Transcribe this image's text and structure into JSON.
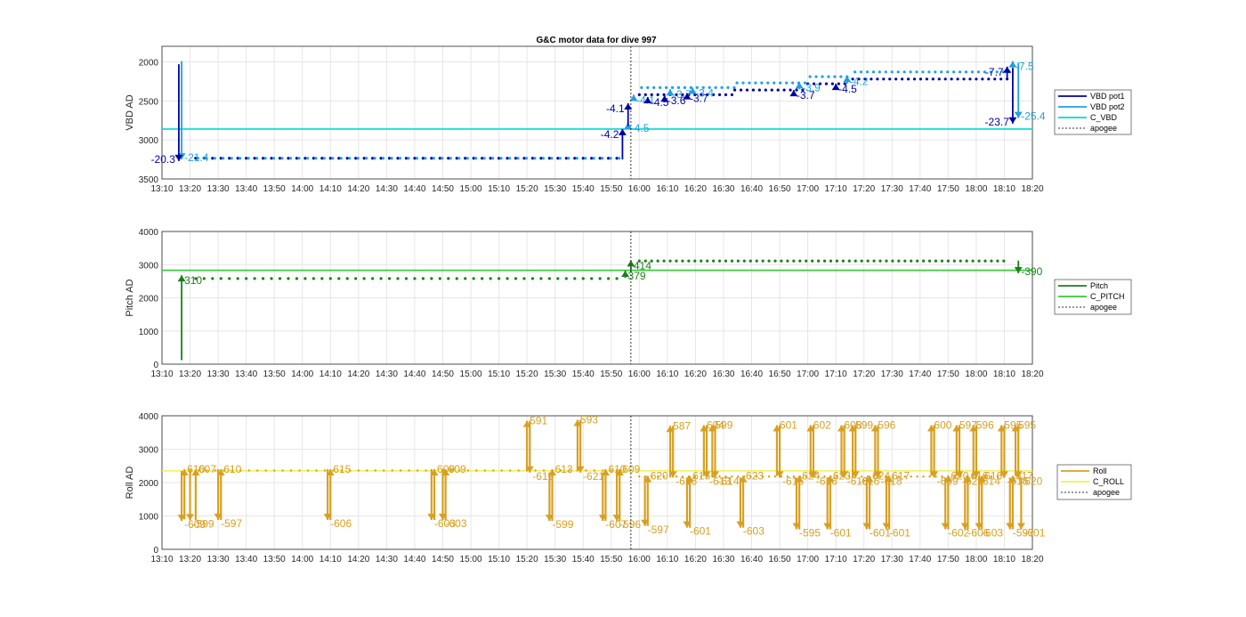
{
  "figure_title": "G&C motor data for dive 997",
  "time_ticks": [
    "13:10",
    "13:20",
    "13:30",
    "13:40",
    "13:50",
    "14:00",
    "14:10",
    "14:20",
    "14:30",
    "14:40",
    "14:50",
    "15:00",
    "15:10",
    "15:20",
    "15:30",
    "15:40",
    "15:50",
    "16:00",
    "16:10",
    "16:20",
    "16:30",
    "16:40",
    "16:50",
    "17:00",
    "17:10",
    "17:20",
    "17:30",
    "17:40",
    "17:50",
    "18:00",
    "18:10",
    "18:20"
  ],
  "colors": {
    "vbd_pot1": "#0000a8",
    "vbd_pot2": "#1ea0e6",
    "c_vbd": "#00d8d8",
    "pitch": "#1b7f1b",
    "c_pitch": "#33cc33",
    "roll": "#d8a020",
    "c_roll": "#f0f050",
    "apogee": "#333333",
    "grid": "#e6e6e6"
  },
  "chart_data": [
    {
      "type": "scatter",
      "title": "G&C motor data for dive 997",
      "xlabel": "",
      "ylabel": "VBD AD",
      "xlim": [
        "13:10",
        "18:20"
      ],
      "ylim": [
        3500,
        1800
      ],
      "y_reversed": true,
      "yticks": [
        2000,
        2500,
        3000,
        3500
      ],
      "grid": true,
      "legend_position": "right",
      "legend": [
        "VBD pot1",
        "VBD pot2",
        "C_VBD",
        "apogee"
      ],
      "reference_lines": [
        {
          "name": "C_VBD",
          "value": 2860
        }
      ],
      "apogee_time": "15:57",
      "segments": [
        {
          "period": "dive",
          "start": "13:22",
          "end": "15:54",
          "value": 3235
        },
        {
          "period": "climb",
          "start": "16:00",
          "end": "16:34",
          "value": 2420
        },
        {
          "period": "climb",
          "start": "16:34",
          "end": "17:00",
          "value": 2360
        },
        {
          "period": "climb",
          "start": "17:00",
          "end": "17:14",
          "value": 2280
        },
        {
          "period": "climb",
          "start": "17:16",
          "end": "18:12",
          "value": 2220
        }
      ],
      "moves": [
        {
          "series": "VBD pot2",
          "t": "13:17",
          "from": 1990,
          "to": 3250,
          "label": "-21.4"
        },
        {
          "series": "VBD pot1",
          "t": "13:16",
          "from": 2030,
          "to": 3270,
          "label": "-20.3"
        },
        {
          "series": "VBD pot1",
          "t": "15:54",
          "from": 3250,
          "to": 2860,
          "label": "-4.2"
        },
        {
          "series": "VBD pot2",
          "t": "15:56",
          "from": 2850,
          "to": 2780,
          "label": "-4.5"
        },
        {
          "series": "VBD pot1",
          "t": "15:56",
          "from": 2820,
          "to": 2530,
          "label": "-4.1"
        },
        {
          "series": "VBD pot2",
          "t": "15:58",
          "from": 2500,
          "to": 2420,
          "label": "-4.1"
        },
        {
          "series": "VBD pot1",
          "t": "16:03",
          "from": 2510,
          "to": 2450,
          "label": "-4.5"
        },
        {
          "series": "VBD pot1",
          "t": "16:09",
          "from": 2470,
          "to": 2430,
          "label": "-3.6"
        },
        {
          "series": "VBD pot2",
          "t": "16:11",
          "from": 2420,
          "to": 2350,
          "label": "-3.7"
        },
        {
          "series": "VBD pot1",
          "t": "16:17",
          "from": 2440,
          "to": 2400,
          "label": "-3.7"
        },
        {
          "series": "VBD pot2",
          "t": "16:19",
          "from": 2410,
          "to": 2330,
          "label": "-3.4"
        },
        {
          "series": "VBD pot1",
          "t": "16:55",
          "from": 2390,
          "to": 2360,
          "label": "-3.7"
        },
        {
          "series": "VBD pot2",
          "t": "16:57",
          "from": 2350,
          "to": 2260,
          "label": "-3.9"
        },
        {
          "series": "VBD pot1",
          "t": "17:10",
          "from": 2320,
          "to": 2280,
          "label": "-4.5"
        },
        {
          "series": "VBD pot2",
          "t": "17:14",
          "from": 2280,
          "to": 2180,
          "label": "-4.2"
        },
        {
          "series": "VBD pot1",
          "t": "18:11",
          "from": 2230,
          "to": 2060,
          "label": "-7.7"
        },
        {
          "series": "VBD pot2",
          "t": "18:13",
          "from": 2220,
          "to": 1990,
          "label": "-7.5"
        },
        {
          "series": "VBD pot1",
          "t": "18:13",
          "from": 2080,
          "to": 2790,
          "label": "-23.7"
        },
        {
          "series": "VBD pot2",
          "t": "18:15",
          "from": 2010,
          "to": 2720,
          "label": "-25.4"
        }
      ]
    },
    {
      "type": "scatter",
      "xlabel": "",
      "ylabel": "Pitch AD",
      "xlim": [
        "13:10",
        "18:20"
      ],
      "ylim": [
        0,
        4000
      ],
      "yticks": [
        0,
        1000,
        2000,
        3000,
        4000
      ],
      "grid": true,
      "legend_position": "right",
      "legend": [
        "Pitch",
        "C_PITCH",
        "apogee"
      ],
      "reference_lines": [
        {
          "name": "C_PITCH",
          "value": 2830
        }
      ],
      "apogee_time": "15:57",
      "segments": [
        {
          "period": "dive",
          "start": "13:22",
          "end": "15:54",
          "value": 2580
        },
        {
          "period": "climb",
          "start": "16:00",
          "end": "18:12",
          "value": 3110
        }
      ],
      "moves": [
        {
          "series": "Pitch",
          "t": "13:17",
          "from": 120,
          "to": 2680,
          "label": "310"
        },
        {
          "series": "Pitch",
          "t": "15:55",
          "from": 2600,
          "to": 2820,
          "label": "379"
        },
        {
          "series": "Pitch",
          "t": "15:57",
          "from": 2780,
          "to": 3130,
          "label": "414"
        },
        {
          "series": "Pitch",
          "t": "18:15",
          "from": 3120,
          "to": 2740,
          "label": "-390"
        }
      ]
    },
    {
      "type": "scatter",
      "xlabel": "",
      "ylabel": "Roll AD",
      "xlim": [
        "13:10",
        "18:20"
      ],
      "ylim": [
        0,
        4000
      ],
      "yticks": [
        0,
        1000,
        2000,
        3000,
        4000
      ],
      "grid": true,
      "legend_position": "right",
      "legend": [
        "Roll",
        "C_ROLL",
        "apogee"
      ],
      "reference_lines": [
        {
          "name": "C_ROLL",
          "value": 2350
        }
      ],
      "apogee_time": "15:57",
      "segments": [
        {
          "period": "dive",
          "start": "13:20",
          "end": "15:54",
          "value": 2360
        },
        {
          "period": "climb",
          "start": "16:00",
          "end": "18:12",
          "value": 2180
        }
      ],
      "moves": [
        {
          "t": "13:17",
          "from": 2350,
          "to": 850,
          "label": "-609"
        },
        {
          "t": "13:18",
          "from": 900,
          "to": 2400,
          "label": "610"
        },
        {
          "t": "13:20",
          "from": 2400,
          "to": 870,
          "label": "-599"
        },
        {
          "t": "13:22",
          "from": 870,
          "to": 2400,
          "label": "607"
        },
        {
          "t": "13:30",
          "from": 2400,
          "to": 880,
          "label": "-597"
        },
        {
          "t": "13:31",
          "from": 880,
          "to": 2400,
          "label": "610"
        },
        {
          "t": "14:09",
          "from": 2400,
          "to": 880,
          "label": "-606"
        },
        {
          "t": "14:10",
          "from": 880,
          "to": 2400,
          "label": "615"
        },
        {
          "t": "14:46",
          "from": 2400,
          "to": 880,
          "label": "-603"
        },
        {
          "t": "14:47",
          "from": 880,
          "to": 2400,
          "label": "609"
        },
        {
          "t": "14:50",
          "from": 2400,
          "to": 880,
          "label": "-603"
        },
        {
          "t": "14:51",
          "from": 880,
          "to": 2400,
          "label": "609"
        },
        {
          "t": "15:20",
          "from": 2350,
          "to": 3850,
          "label": "591"
        },
        {
          "t": "15:21",
          "from": 3850,
          "to": 2300,
          "label": "-619"
        },
        {
          "t": "15:28",
          "from": 2300,
          "to": 850,
          "label": "-599"
        },
        {
          "t": "15:29",
          "from": 850,
          "to": 2400,
          "label": "613"
        },
        {
          "t": "15:38",
          "from": 2350,
          "to": 3880,
          "label": "593"
        },
        {
          "t": "15:39",
          "from": 3880,
          "to": 2300,
          "label": "-621"
        },
        {
          "t": "15:47",
          "from": 2300,
          "to": 850,
          "label": "-607"
        },
        {
          "t": "15:48",
          "from": 850,
          "to": 2400,
          "label": "610"
        },
        {
          "t": "15:52",
          "from": 2400,
          "to": 850,
          "label": "-596"
        },
        {
          "t": "15:53",
          "from": 850,
          "to": 2400,
          "label": "609"
        },
        {
          "t": "16:02",
          "from": 2200,
          "to": 700,
          "label": "-597"
        },
        {
          "t": "16:03",
          "from": 700,
          "to": 2200,
          "label": "620"
        },
        {
          "t": "16:11",
          "from": 2200,
          "to": 3700,
          "label": "587"
        },
        {
          "t": "16:12",
          "from": 3700,
          "to": 2150,
          "label": "-616"
        },
        {
          "t": "16:17",
          "from": 2150,
          "to": 650,
          "label": "-601"
        },
        {
          "t": "16:18",
          "from": 650,
          "to": 2200,
          "label": "615"
        },
        {
          "t": "16:23",
          "from": 2200,
          "to": 3720,
          "label": "604"
        },
        {
          "t": "16:24",
          "from": 3720,
          "to": 2150,
          "label": "-613"
        },
        {
          "t": "16:26",
          "from": 2150,
          "to": 3720,
          "label": "599"
        },
        {
          "t": "16:27",
          "from": 3720,
          "to": 2150,
          "label": "-614"
        },
        {
          "t": "16:36",
          "from": 2150,
          "to": 650,
          "label": "-603"
        },
        {
          "t": "16:37",
          "from": 650,
          "to": 2200,
          "label": "623"
        },
        {
          "t": "16:49",
          "from": 2200,
          "to": 3720,
          "label": "601"
        },
        {
          "t": "16:50",
          "from": 3720,
          "to": 2150,
          "label": "-616"
        },
        {
          "t": "16:56",
          "from": 2150,
          "to": 600,
          "label": "-595"
        },
        {
          "t": "16:57",
          "from": 600,
          "to": 2200,
          "label": "624"
        },
        {
          "t": "17:01",
          "from": 2200,
          "to": 3720,
          "label": "602"
        },
        {
          "t": "17:02",
          "from": 3720,
          "to": 2150,
          "label": "-616"
        },
        {
          "t": "17:07",
          "from": 2150,
          "to": 600,
          "label": "-601"
        },
        {
          "t": "17:08",
          "from": 600,
          "to": 2200,
          "label": "623"
        },
        {
          "t": "17:12",
          "from": 2200,
          "to": 3720,
          "label": "608"
        },
        {
          "t": "17:13",
          "from": 3720,
          "to": 2150,
          "label": "-618"
        },
        {
          "t": "17:16",
          "from": 2150,
          "to": 3720,
          "label": "599"
        },
        {
          "t": "17:17",
          "from": 3720,
          "to": 2150,
          "label": "-616"
        },
        {
          "t": "17:21",
          "from": 2150,
          "to": 600,
          "label": "-601"
        },
        {
          "t": "17:22",
          "from": 600,
          "to": 2200,
          "label": "624"
        },
        {
          "t": "17:24",
          "from": 2200,
          "to": 3720,
          "label": "596"
        },
        {
          "t": "17:25",
          "from": 3720,
          "to": 2150,
          "label": "-618"
        },
        {
          "t": "17:28",
          "from": 2150,
          "to": 600,
          "label": "-601"
        },
        {
          "t": "17:29",
          "from": 600,
          "to": 2200,
          "label": "617"
        },
        {
          "t": "17:44",
          "from": 2200,
          "to": 3720,
          "label": "600"
        },
        {
          "t": "17:45",
          "from": 3720,
          "to": 2150,
          "label": "-609"
        },
        {
          "t": "17:49",
          "from": 2150,
          "to": 600,
          "label": "-602"
        },
        {
          "t": "17:50",
          "from": 600,
          "to": 2200,
          "label": "620"
        },
        {
          "t": "17:53",
          "from": 2200,
          "to": 3720,
          "label": "597"
        },
        {
          "t": "17:54",
          "from": 3720,
          "to": 2150,
          "label": "-621"
        },
        {
          "t": "17:56",
          "from": 2150,
          "to": 600,
          "label": "-606"
        },
        {
          "t": "17:57",
          "from": 600,
          "to": 2200,
          "label": "616"
        },
        {
          "t": "17:59",
          "from": 2200,
          "to": 3720,
          "label": "596"
        },
        {
          "t": "18:00",
          "from": 3720,
          "to": 2150,
          "label": "-614"
        },
        {
          "t": "18:01",
          "from": 2150,
          "to": 600,
          "label": "-603"
        },
        {
          "t": "18:02",
          "from": 600,
          "to": 2200,
          "label": "616"
        },
        {
          "t": "18:09",
          "from": 2200,
          "to": 3720,
          "label": "595"
        },
        {
          "t": "18:10",
          "from": 3720,
          "to": 2150,
          "label": "-615"
        },
        {
          "t": "18:12",
          "from": 2150,
          "to": 600,
          "label": "-597"
        },
        {
          "t": "18:13",
          "from": 600,
          "to": 2200,
          "label": "617"
        },
        {
          "t": "18:14",
          "from": 2200,
          "to": 3720,
          "label": "595"
        },
        {
          "t": "18:15",
          "from": 3720,
          "to": 2150,
          "label": "-620"
        },
        {
          "t": "18:16",
          "from": 2150,
          "to": 600,
          "label": "-601"
        }
      ]
    }
  ]
}
